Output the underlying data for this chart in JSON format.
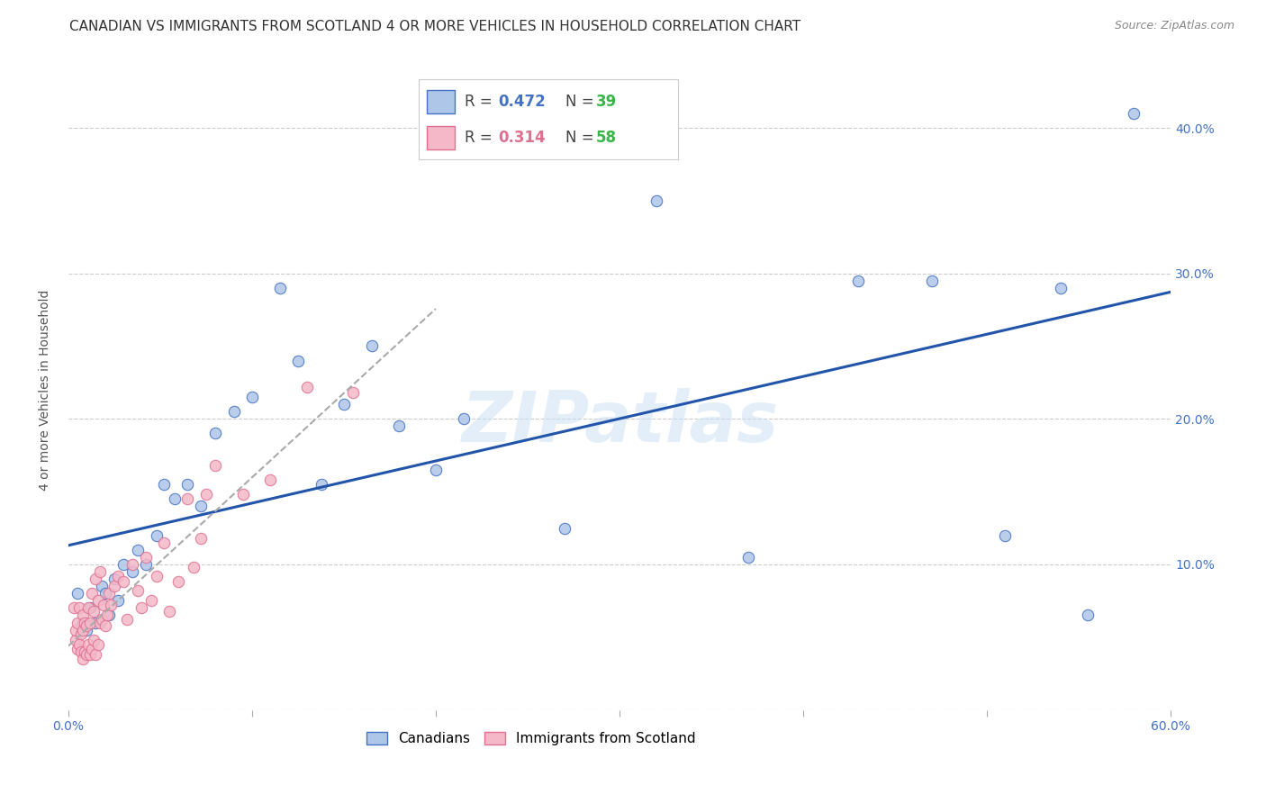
{
  "title": "CANADIAN VS IMMIGRANTS FROM SCOTLAND 4 OR MORE VEHICLES IN HOUSEHOLD CORRELATION CHART",
  "source": "Source: ZipAtlas.com",
  "xlabel": "",
  "ylabel": "4 or more Vehicles in Household",
  "xlim": [
    0.0,
    0.6
  ],
  "ylim": [
    0.0,
    0.44
  ],
  "xticks": [
    0.0,
    0.1,
    0.2,
    0.3,
    0.4,
    0.5,
    0.6
  ],
  "xticklabels": [
    "0.0%",
    "",
    "",
    "",
    "",
    "",
    "60.0%"
  ],
  "yticks": [
    0.0,
    0.1,
    0.2,
    0.3,
    0.4
  ],
  "right_yticklabels": [
    "",
    "10.0%",
    "20.0%",
    "30.0%",
    "40.0%"
  ],
  "canadians_color": "#aec6e8",
  "canadians_edge_color": "#4472c4",
  "scotland_color": "#f4b8c8",
  "scotland_edge_color": "#e07090",
  "canadians_R": 0.472,
  "canadians_N": 39,
  "scotland_R": 0.314,
  "scotland_N": 58,
  "legend_R_color_canadians": "#4472c4",
  "legend_R_color_scotland": "#e07090",
  "legend_N_color": "#39b54a",
  "watermark": "ZIPatlas",
  "canadians_x": [
    0.005,
    0.008,
    0.01,
    0.012,
    0.015,
    0.018,
    0.02,
    0.022,
    0.025,
    0.027,
    0.03,
    0.035,
    0.038,
    0.042,
    0.048,
    0.052,
    0.058,
    0.065,
    0.072,
    0.08,
    0.09,
    0.1,
    0.115,
    0.125,
    0.138,
    0.15,
    0.165,
    0.18,
    0.2,
    0.215,
    0.27,
    0.32,
    0.37,
    0.43,
    0.47,
    0.51,
    0.54,
    0.555,
    0.58
  ],
  "canadians_y": [
    0.08,
    0.06,
    0.055,
    0.07,
    0.06,
    0.085,
    0.08,
    0.065,
    0.09,
    0.075,
    0.1,
    0.095,
    0.11,
    0.1,
    0.12,
    0.155,
    0.145,
    0.155,
    0.14,
    0.19,
    0.205,
    0.215,
    0.29,
    0.24,
    0.155,
    0.21,
    0.25,
    0.195,
    0.165,
    0.2,
    0.125,
    0.35,
    0.105,
    0.295,
    0.295,
    0.12,
    0.29,
    0.065,
    0.41
  ],
  "scotland_x": [
    0.003,
    0.004,
    0.004,
    0.005,
    0.005,
    0.006,
    0.006,
    0.007,
    0.007,
    0.008,
    0.008,
    0.008,
    0.009,
    0.009,
    0.01,
    0.01,
    0.011,
    0.011,
    0.012,
    0.012,
    0.013,
    0.013,
    0.014,
    0.014,
    0.015,
    0.015,
    0.016,
    0.016,
    0.017,
    0.017,
    0.018,
    0.019,
    0.02,
    0.021,
    0.022,
    0.023,
    0.025,
    0.027,
    0.03,
    0.032,
    0.035,
    0.038,
    0.04,
    0.042,
    0.045,
    0.048,
    0.052,
    0.055,
    0.06,
    0.065,
    0.068,
    0.072,
    0.075,
    0.08,
    0.095,
    0.11,
    0.13,
    0.155
  ],
  "scotland_y": [
    0.07,
    0.048,
    0.055,
    0.042,
    0.06,
    0.045,
    0.07,
    0.04,
    0.052,
    0.035,
    0.055,
    0.065,
    0.04,
    0.06,
    0.038,
    0.058,
    0.045,
    0.07,
    0.038,
    0.06,
    0.042,
    0.08,
    0.048,
    0.068,
    0.038,
    0.09,
    0.045,
    0.075,
    0.06,
    0.095,
    0.062,
    0.072,
    0.058,
    0.065,
    0.08,
    0.072,
    0.085,
    0.092,
    0.088,
    0.062,
    0.1,
    0.082,
    0.07,
    0.105,
    0.075,
    0.092,
    0.115,
    0.068,
    0.088,
    0.145,
    0.098,
    0.118,
    0.148,
    0.168,
    0.148,
    0.158,
    0.222,
    0.218
  ],
  "grid_color": "#cccccc",
  "bg_color": "#ffffff",
  "title_fontsize": 11,
  "axis_label_fontsize": 10,
  "tick_fontsize": 10,
  "marker_size": 80
}
